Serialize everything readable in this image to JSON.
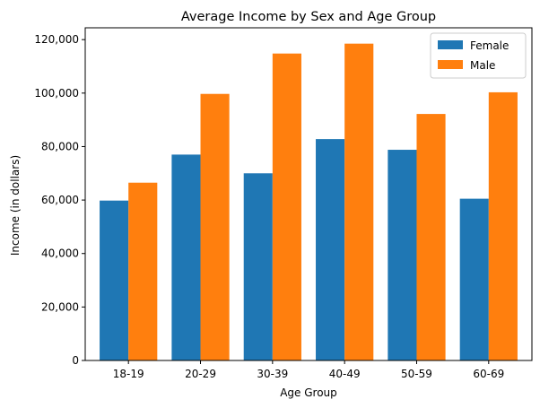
{
  "chart_data": {
    "type": "bar",
    "title": "Average Income by Sex and Age Group",
    "xlabel": "Age Group",
    "ylabel": "Income (in dollars)",
    "categories": [
      "18-19",
      "20-29",
      "30-39",
      "40-49",
      "50-59",
      "60-69"
    ],
    "series": [
      {
        "name": "Female",
        "color": "#1f77b4",
        "values": [
          59800,
          77000,
          70000,
          82800,
          78800,
          60500
        ]
      },
      {
        "name": "Male",
        "color": "#ff7f0e",
        "values": [
          66500,
          99700,
          114800,
          118500,
          92200,
          100300
        ]
      }
    ],
    "ylim": [
      0,
      124425
    ],
    "yticks": [
      0,
      20000,
      40000,
      60000,
      80000,
      100000,
      120000
    ],
    "ytick_labels": [
      "0",
      "20,000",
      "40,000",
      "60,000",
      "80,000",
      "100,000",
      "120,000"
    ],
    "grid": false,
    "legend_position": "top-right"
  }
}
